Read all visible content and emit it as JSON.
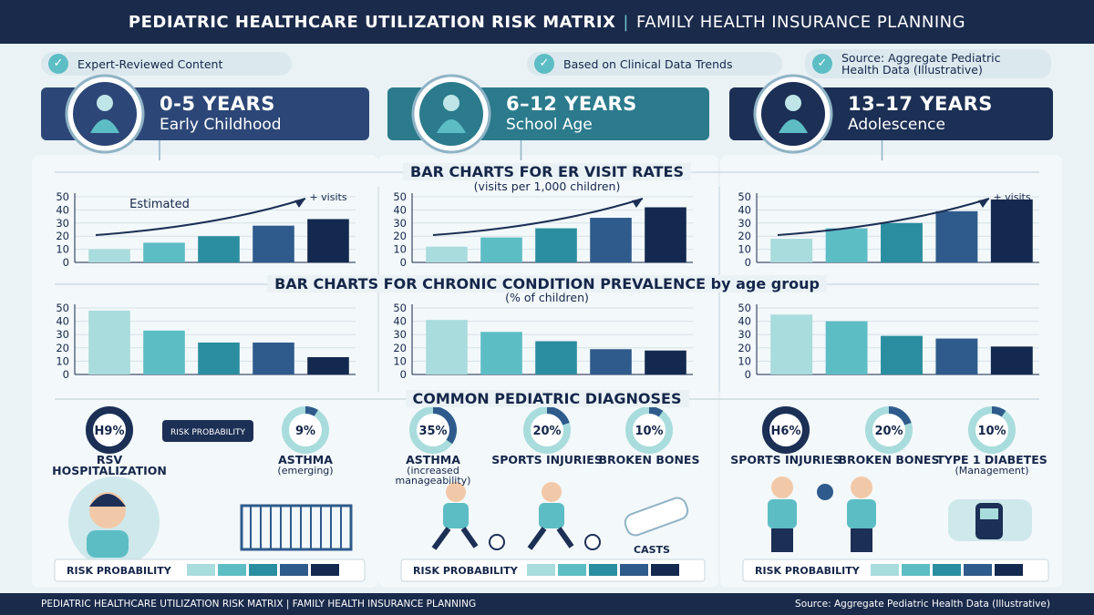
{
  "header": {
    "title": "PEDIATRIC HEALTHCARE UTILIZATION RISK MATRIX",
    "subtitle": "FAMILY HEALTH INSURANCE PLANNING"
  },
  "badges": [
    "Expert-Reviewed Content",
    "Based on Clinical Data Trends",
    "Source: Aggregate Pediatric Health Data (Illustrative)"
  ],
  "age_groups": [
    {
      "range": "0-5 YEARS",
      "name": "Early Childhood"
    },
    {
      "range": "6–12 YEARS",
      "name": "School Age"
    },
    {
      "range": "13–17 YEARS",
      "name": "Adolescence"
    }
  ],
  "bar_colors": [
    "#a9dcdc",
    "#5dbdc5",
    "#2a8ea0",
    "#2f5b8c",
    "#14294f"
  ],
  "er_section": {
    "title": "BAR CHARTS FOR ER VISIT RATES",
    "subtitle": "(visits per 1,000 children)",
    "charts": [
      {
        "type": "bar",
        "values": [
          10,
          15,
          20,
          28,
          33
        ],
        "ylim": [
          0,
          50
        ],
        "yticks": [
          0,
          10,
          20,
          30,
          40,
          50
        ],
        "annotations": [
          "Estimated",
          "+ visits"
        ]
      },
      {
        "type": "bar",
        "values": [
          12,
          19,
          26,
          34,
          42
        ],
        "ylim": [
          0,
          50
        ],
        "yticks": [
          0,
          10,
          20,
          30,
          40,
          50
        ]
      },
      {
        "type": "bar",
        "values": [
          18,
          26,
          30,
          39,
          48
        ],
        "ylim": [
          0,
          50
        ],
        "yticks": [
          0,
          10,
          20,
          30,
          40,
          50
        ],
        "annotations": [
          "+ visits"
        ]
      }
    ]
  },
  "chronic_section": {
    "title": "BAR CHARTS FOR CHRONIC CONDITION PREVALENCE by age group",
    "subtitle": "(% of children)",
    "charts": [
      {
        "type": "bar",
        "values": [
          48,
          33,
          24,
          24,
          13
        ],
        "ylim": [
          0,
          50
        ],
        "yticks": [
          0,
          10,
          20,
          30,
          40,
          50
        ]
      },
      {
        "type": "bar",
        "values": [
          41,
          32,
          25,
          19,
          18
        ],
        "ylim": [
          0,
          50
        ],
        "yticks": [
          0,
          10,
          20,
          30,
          40,
          50
        ]
      },
      {
        "type": "bar",
        "values": [
          45,
          40,
          29,
          27,
          21
        ],
        "ylim": [
          0,
          50
        ],
        "yticks": [
          0,
          10,
          20,
          30,
          40,
          50
        ]
      }
    ]
  },
  "diagnoses": {
    "title": "COMMON PEDIATRIC DIAGNOSES",
    "ribbon": "RISK PROBABILITY",
    "columns": [
      [
        {
          "value_label": "H9%",
          "label": "RSV HOSPITALIZATION"
        },
        {
          "value": 9,
          "value_label": "9%",
          "label": "ASTHMA",
          "note": "(emerging)"
        }
      ],
      [
        {
          "value": 35,
          "value_label": "35%",
          "label": "ASTHMA",
          "note": "(increased manageability)"
        },
        {
          "value": 20,
          "value_label": "20%",
          "label": "SPORTS INJURIES"
        },
        {
          "value": 10,
          "value_label": "10%",
          "label": "BROKEN BONES"
        }
      ],
      [
        {
          "value_label": "H6%",
          "label": "SPORTS INJURIES"
        },
        {
          "value": 20,
          "value_label": "20%",
          "label": "BROKEN BONES"
        },
        {
          "value": 10,
          "value_label": "10%",
          "label": "TYPE 1 DIABETES",
          "note": "(Management)"
        }
      ]
    ],
    "casts_label": "CASTS",
    "risk_label": "RISK PROBABILITY"
  },
  "footer": {
    "left": "PEDIATRIC HEALTHCARE UTILIZATION RISK MATRIX | FAMILY HEALTH INSURANCE PLANNING",
    "right": "Source: Aggregate Pediatric Health Data (Illustrative)"
  }
}
